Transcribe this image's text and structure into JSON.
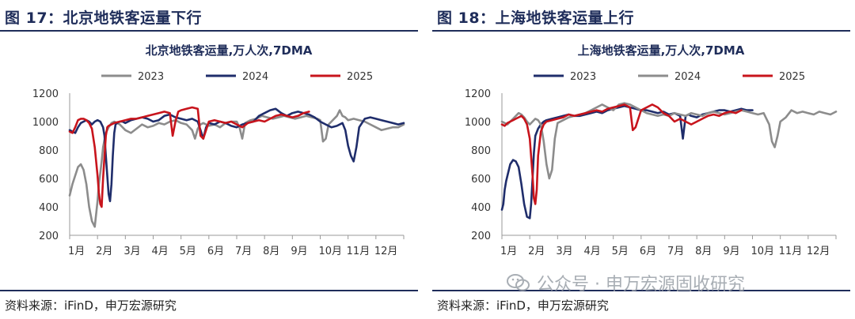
{
  "panels": [
    {
      "figure_title": "图 17：北京地铁客运量下行",
      "source": "资料来源：iFinD，申万宏源研究",
      "chart_data": {
        "type": "line",
        "title": "北京地铁客运量,万人次,7DMA",
        "x_ticks": [
          "1月",
          "2月",
          "3月",
          "4月",
          "5月",
          "6月",
          "7月",
          "8月",
          "9月",
          "10月",
          "11月",
          "12月"
        ],
        "y_ticks": [
          200,
          400,
          600,
          800,
          1000,
          1200
        ],
        "ylim": [
          200,
          1200
        ],
        "legend_position": "top",
        "series": [
          {
            "name": "2023",
            "color": "#8c8c8c",
            "x": [
              0,
              0.1,
              0.2,
              0.3,
              0.4,
              0.5,
              0.6,
              0.7,
              0.8,
              0.9,
              1.0,
              1.05,
              1.1,
              1.15,
              1.2,
              1.3,
              1.4,
              1.5,
              1.6,
              1.7,
              1.8,
              2.0,
              2.2,
              2.4,
              2.6,
              2.8,
              3.0,
              3.2,
              3.4,
              3.6,
              3.8,
              4.0,
              4.2,
              4.4,
              4.5,
              4.6,
              4.7,
              4.8,
              5.0,
              5.2,
              5.4,
              5.6,
              5.8,
              6.0,
              6.1,
              6.2,
              6.3,
              6.5,
              6.7,
              6.9,
              7.1,
              7.3,
              7.5,
              7.7,
              7.9,
              8.1,
              8.3,
              8.5,
              8.7,
              8.9,
              9.0,
              9.1,
              9.2,
              9.3,
              9.4,
              9.5,
              9.6,
              9.7,
              9.8,
              9.9,
              10.0,
              10.2,
              10.4,
              10.6,
              10.8,
              11.0,
              11.2,
              11.4,
              11.6,
              11.8,
              12.0
            ],
            "y": [
              480,
              560,
              620,
              680,
              700,
              660,
              560,
              400,
              300,
              260,
              440,
              560,
              640,
              720,
              820,
              920,
              960,
              990,
              1000,
              990,
              980,
              940,
              920,
              950,
              980,
              960,
              970,
              990,
              980,
              1000,
              1010,
              990,
              980,
              940,
              880,
              950,
              980,
              990,
              970,
              980,
              960,
              990,
              1000,
              1000,
              960,
              880,
              990,
              1010,
              1020,
              1040,
              1030,
              1020,
              1030,
              1040,
              1030,
              1020,
              1030,
              1040,
              1030,
              1020,
              1010,
              860,
              880,
              980,
              1000,
              1020,
              1040,
              1080,
              1040,
              1030,
              1010,
              1020,
              1010,
              1000,
              980,
              960,
              940,
              950,
              960,
              960,
              980
            ]
          },
          {
            "name": "2024",
            "color": "#1f2d6b",
            "x": [
              0,
              0.1,
              0.2,
              0.3,
              0.4,
              0.5,
              0.6,
              0.7,
              0.8,
              0.9,
              1.0,
              1.1,
              1.2,
              1.25,
              1.3,
              1.35,
              1.4,
              1.45,
              1.5,
              1.55,
              1.6,
              1.65,
              1.7,
              1.8,
              1.9,
              2.0,
              2.2,
              2.4,
              2.6,
              2.8,
              3.0,
              3.2,
              3.4,
              3.6,
              3.8,
              4.0,
              4.2,
              4.4,
              4.6,
              4.7,
              4.8,
              4.9,
              5.0,
              5.2,
              5.4,
              5.6,
              5.8,
              6.0,
              6.2,
              6.4,
              6.6,
              6.8,
              7.0,
              7.2,
              7.4,
              7.6,
              7.8,
              8.0,
              8.2,
              8.4,
              8.6,
              8.8,
              9.0,
              9.2,
              9.4,
              9.6,
              9.8,
              9.9,
              10.0,
              10.1,
              10.2,
              10.3,
              10.4,
              10.6,
              10.8,
              11.0,
              11.2,
              11.4,
              11.6,
              11.8,
              12.0
            ],
            "y": [
              940,
              930,
              920,
              960,
              990,
              1000,
              1010,
              1000,
              980,
              1000,
              1010,
              1000,
              960,
              900,
              760,
              620,
              490,
              440,
              560,
              760,
              920,
              980,
              990,
              1000,
              1000,
              990,
              1010,
              1020,
              1030,
              1020,
              1000,
              1010,
              1040,
              1050,
              1030,
              1020,
              1010,
              1020,
              1000,
              940,
              880,
              960,
              990,
              980,
              1000,
              990,
              970,
              960,
              980,
              990,
              1000,
              1040,
              1060,
              1080,
              1090,
              1060,
              1040,
              1060,
              1070,
              1060,
              1050,
              1030,
              1000,
              980,
              960,
              970,
              990,
              940,
              830,
              760,
              720,
              820,
              960,
              1020,
              1030,
              1020,
              1010,
              1000,
              990,
              980,
              990
            ]
          },
          {
            "name": "2025",
            "color": "#c8141c",
            "x": [
              0,
              0.1,
              0.2,
              0.3,
              0.4,
              0.5,
              0.6,
              0.7,
              0.8,
              0.9,
              1.0,
              1.05,
              1.1,
              1.15,
              1.2,
              1.3,
              1.35,
              1.4,
              1.5,
              1.6,
              1.8,
              2.0,
              2.2,
              2.4,
              2.6,
              2.8,
              3.0,
              3.2,
              3.4,
              3.6,
              3.7,
              3.8,
              3.9,
              4.0,
              4.2,
              4.4,
              4.6,
              4.7,
              4.8,
              5.0,
              5.2,
              5.4,
              5.6,
              5.8,
              6.0,
              6.2,
              6.4,
              6.6,
              6.8,
              7.0,
              7.2,
              7.4,
              7.6,
              7.8,
              8.0,
              8.2,
              8.4,
              8.6
            ],
            "y": [
              930,
              920,
              960,
              1010,
              1020,
              1020,
              1010,
              990,
              950,
              820,
              620,
              500,
              420,
              400,
              600,
              900,
              960,
              970,
              980,
              990,
              1000,
              1010,
              1020,
              1020,
              1030,
              1040,
              1050,
              1060,
              1070,
              1060,
              900,
              1000,
              1070,
              1080,
              1090,
              1100,
              1090,
              900,
              880,
              1000,
              1010,
              1000,
              990,
              1000,
              980,
              960,
              990,
              1000,
              1010,
              1000,
              1020,
              1040,
              1050,
              1040,
              1030,
              1040,
              1060,
              1070
            ]
          }
        ]
      }
    },
    {
      "figure_title": "图 18：上海地铁客运量上行",
      "source": "资料来源：iFinD，申万宏源研究",
      "chart_data": {
        "type": "line",
        "title": "上海地铁客运量,万人次,7DMA",
        "x_ticks": [
          "1月",
          "2月",
          "3月",
          "4月",
          "5月",
          "6月",
          "7月",
          "8月",
          "9月",
          "10月",
          "11月",
          "12月"
        ],
        "y_ticks": [
          200,
          400,
          600,
          800,
          1000,
          1200
        ],
        "ylim": [
          200,
          1200
        ],
        "legend_position": "top",
        "series": [
          {
            "name": "2023",
            "color": "#1f2d6b",
            "x": [
              0,
              0.05,
              0.1,
              0.15,
              0.2,
              0.3,
              0.4,
              0.5,
              0.6,
              0.7,
              0.8,
              0.9,
              1.0,
              1.05,
              1.1,
              1.15,
              1.2,
              1.3,
              1.4,
              1.5,
              1.6,
              1.8,
              2.0,
              2.2,
              2.4,
              2.6,
              2.8,
              3.0,
              3.2,
              3.4,
              3.6,
              3.8,
              4.0,
              4.2,
              4.4,
              4.6,
              4.8,
              5.0,
              5.2,
              5.4,
              5.6,
              5.8,
              6.0,
              6.2,
              6.4,
              6.5,
              6.6,
              6.7,
              6.8,
              7.0,
              7.2,
              7.4,
              7.6,
              7.8,
              8.0,
              8.2,
              8.4,
              8.6,
              8.8,
              9.0
            ],
            "y": [
              380,
              420,
              520,
              580,
              620,
              700,
              730,
              720,
              680,
              560,
              420,
              330,
              320,
              420,
              600,
              780,
              900,
              950,
              980,
              1000,
              1010,
              1020,
              1030,
              1040,
              1050,
              1040,
              1040,
              1050,
              1060,
              1070,
              1060,
              1080,
              1090,
              1100,
              1110,
              1100,
              1090,
              1080,
              1080,
              1070,
              1060,
              1070,
              1050,
              1060,
              1040,
              880,
              1040,
              1050,
              1040,
              1030,
              1050,
              1060,
              1070,
              1080,
              1080,
              1070,
              1080,
              1090,
              1080,
              1080
            ]
          },
          {
            "name": "2024",
            "color": "#8c8c8c",
            "x": [
              0,
              0.1,
              0.2,
              0.3,
              0.4,
              0.5,
              0.6,
              0.7,
              0.8,
              0.9,
              1.0,
              1.1,
              1.2,
              1.3,
              1.4,
              1.5,
              1.6,
              1.7,
              1.8,
              1.9,
              2.0,
              2.2,
              2.4,
              2.6,
              2.8,
              3.0,
              3.2,
              3.4,
              3.6,
              3.8,
              4.0,
              4.2,
              4.4,
              4.6,
              4.8,
              5.0,
              5.2,
              5.4,
              5.6,
              5.8,
              6.0,
              6.2,
              6.4,
              6.6,
              6.8,
              7.0,
              7.2,
              7.4,
              7.6,
              7.8,
              8.0,
              8.2,
              8.4,
              8.6,
              8.8,
              9.0,
              9.2,
              9.4,
              9.6,
              9.7,
              9.8,
              9.9,
              10.0,
              10.2,
              10.4,
              10.6,
              10.8,
              11.0,
              11.2,
              11.4,
              11.6,
              11.8,
              12.0
            ],
            "y": [
              1000,
              990,
              980,
              1000,
              1020,
              1040,
              1060,
              1050,
              1030,
              1000,
              980,
              1000,
              1020,
              1010,
              980,
              860,
              700,
              600,
              660,
              880,
              990,
              1010,
              1030,
              1040,
              1050,
              1060,
              1080,
              1100,
              1120,
              1100,
              1080,
              1120,
              1130,
              1120,
              1100,
              1080,
              1060,
              1050,
              1040,
              1050,
              1040,
              1060,
              1050,
              1040,
              1060,
              1050,
              1040,
              1060,
              1070,
              1060,
              1050,
              1060,
              1070,
              1080,
              1070,
              1060,
              1050,
              1060,
              980,
              860,
              820,
              900,
              1000,
              1030,
              1080,
              1060,
              1070,
              1060,
              1050,
              1070,
              1060,
              1050,
              1070
            ]
          },
          {
            "name": "2025",
            "color": "#c8141c",
            "x": [
              0,
              0.1,
              0.2,
              0.3,
              0.4,
              0.5,
              0.6,
              0.7,
              0.8,
              0.9,
              1.0,
              1.1,
              1.15,
              1.2,
              1.25,
              1.3,
              1.4,
              1.5,
              1.6,
              1.8,
              2.0,
              2.2,
              2.4,
              2.6,
              2.8,
              3.0,
              3.2,
              3.4,
              3.6,
              3.8,
              4.0,
              4.2,
              4.4,
              4.6,
              4.7,
              4.8,
              5.0,
              5.2,
              5.4,
              5.6,
              5.8,
              6.0,
              6.2,
              6.4,
              6.6,
              6.8,
              7.0,
              7.2,
              7.4,
              7.6,
              7.8,
              8.0,
              8.2,
              8.4,
              8.6
            ],
            "y": [
              980,
              970,
              990,
              1000,
              1010,
              1020,
              1030,
              1040,
              1020,
              980,
              880,
              620,
              460,
              420,
              520,
              760,
              930,
              980,
              1000,
              1010,
              1020,
              1030,
              1050,
              1040,
              1050,
              1060,
              1070,
              1080,
              1070,
              1090,
              1100,
              1110,
              1120,
              1100,
              940,
              960,
              1080,
              1100,
              1120,
              1100,
              1060,
              1040,
              1000,
              1020,
              1000,
              980,
              1000,
              1020,
              1040,
              1050,
              1040,
              1060,
              1070,
              1060,
              1080
            ]
          }
        ]
      }
    }
  ],
  "watermark": "公众号 · 申万宏源固收研究"
}
